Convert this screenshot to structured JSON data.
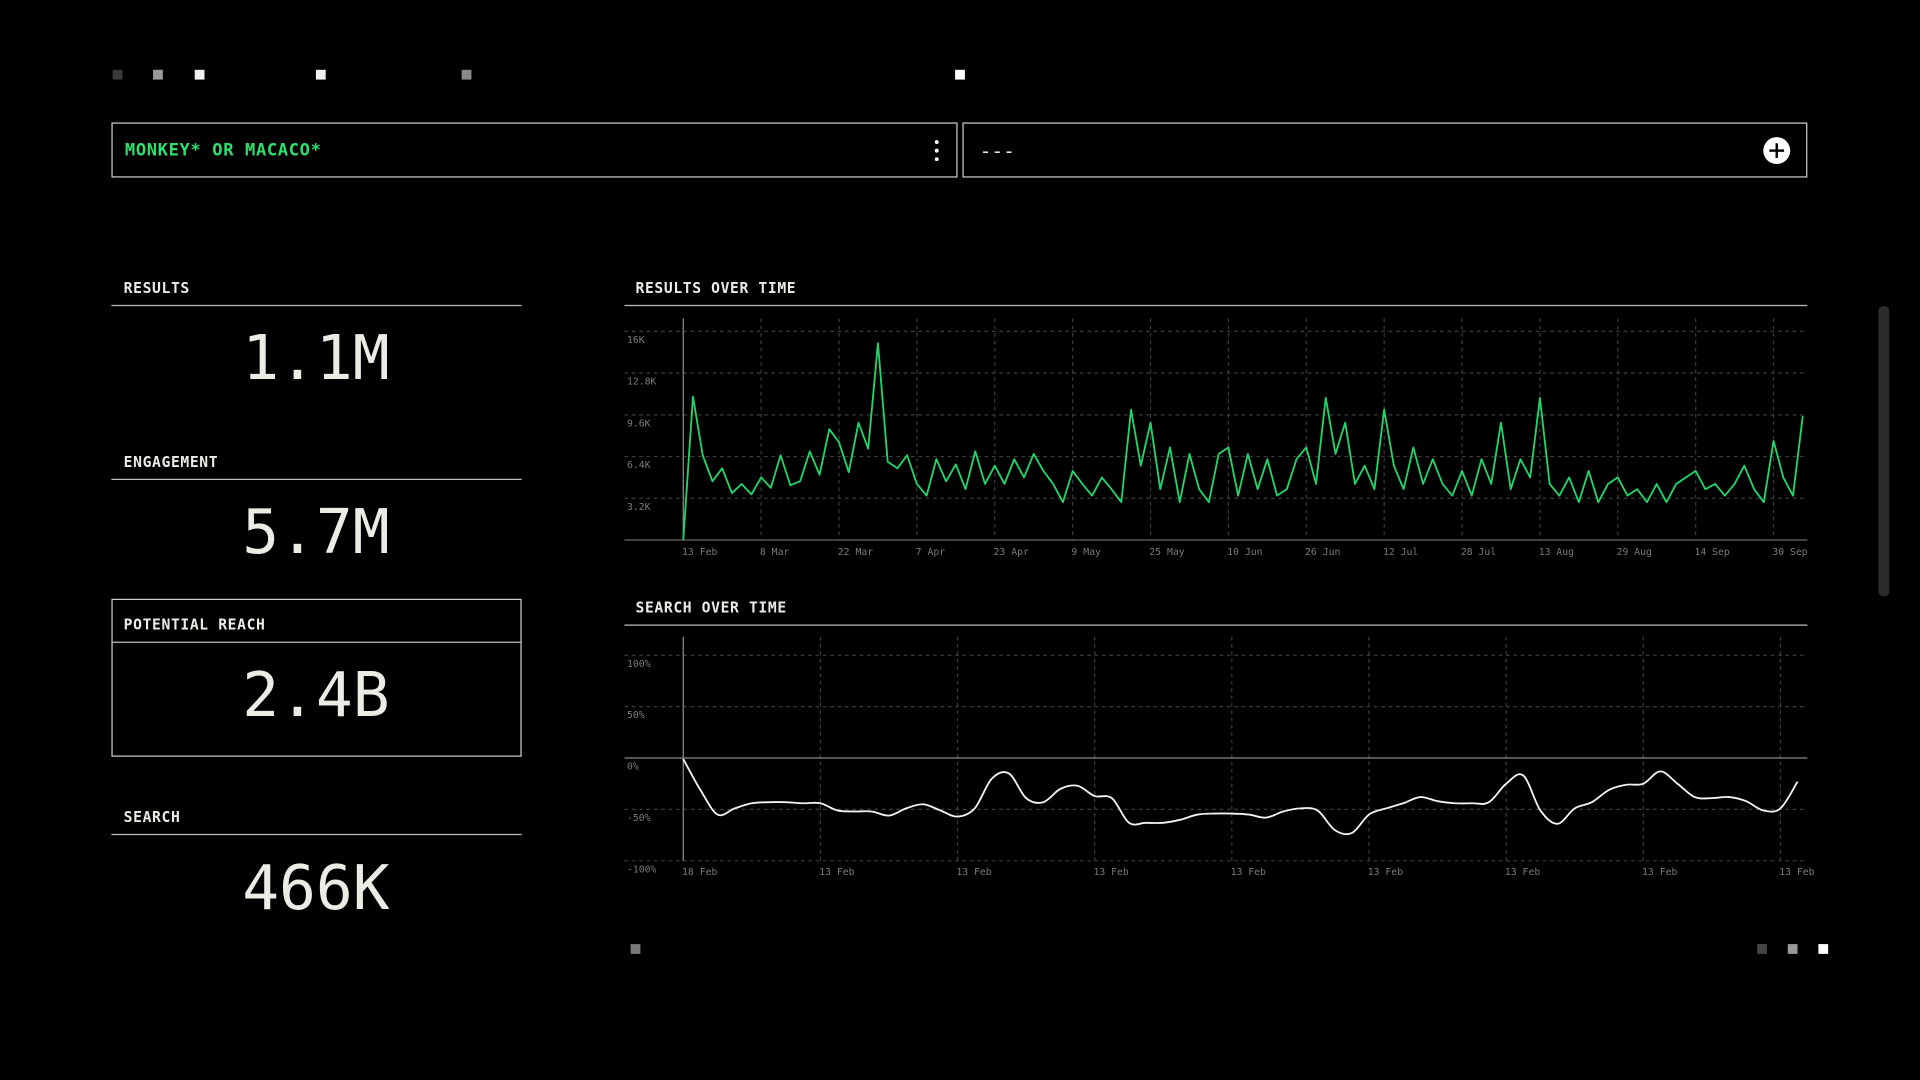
{
  "ui": {
    "query": "MONKEY* OR MACACO*",
    "compare": "---",
    "stats": [
      {
        "label": "RESULTS",
        "value": "1.1M"
      },
      {
        "label": "ENGAGEMENT",
        "value": "5.7M"
      },
      {
        "label": "POTENTIAL REACH",
        "value": "2.4B"
      },
      {
        "label": "SEARCH",
        "value": "466K"
      }
    ]
  },
  "chart_data": [
    {
      "type": "line",
      "title": "RESULTS OVER TIME",
      "color": "#22d46a",
      "smooth": false,
      "grid": true,
      "categories": [
        "13 Feb",
        null,
        null,
        null,
        null,
        null,
        null,
        null,
        "8 Mar",
        null,
        null,
        null,
        null,
        null,
        null,
        null,
        "22 Mar",
        null,
        null,
        null,
        null,
        null,
        null,
        null,
        "7 Apr",
        null,
        null,
        null,
        null,
        null,
        null,
        null,
        "23 Apr",
        null,
        null,
        null,
        null,
        null,
        null,
        null,
        "9 May",
        null,
        null,
        null,
        null,
        null,
        null,
        null,
        "25 May",
        null,
        null,
        null,
        null,
        null,
        null,
        null,
        "10 Jun",
        null,
        null,
        null,
        null,
        null,
        null,
        null,
        "26 Jun",
        null,
        null,
        null,
        null,
        null,
        null,
        null,
        "12 Jul",
        null,
        null,
        null,
        null,
        null,
        null,
        null,
        "28 Jul",
        null,
        null,
        null,
        null,
        null,
        null,
        null,
        "13 Aug",
        null,
        null,
        null,
        null,
        null,
        null,
        null,
        "29 Aug",
        null,
        null,
        null,
        null,
        null,
        null,
        null,
        "14 Sep",
        null,
        null,
        null,
        null,
        null,
        null,
        null,
        "30 Sep",
        null,
        null,
        null
      ],
      "values": [
        0,
        11000,
        6500,
        4500,
        5500,
        3600,
        4300,
        3500,
        4800,
        4000,
        6500,
        4200,
        4500,
        6800,
        5000,
        8500,
        7500,
        5200,
        9000,
        7000,
        15100,
        6000,
        5500,
        6500,
        4300,
        3400,
        6200,
        4500,
        5800,
        3900,
        6800,
        4300,
        5700,
        4300,
        6200,
        4800,
        6600,
        5300,
        4300,
        2900,
        5300,
        4300,
        3400,
        4800,
        3900,
        2900,
        10000,
        5700,
        9000,
        3900,
        7100,
        2900,
        6600,
        3900,
        2900,
        6600,
        7100,
        3400,
        6600,
        3900,
        6200,
        3400,
        3900,
        6200,
        7100,
        4300,
        10900,
        6600,
        9000,
        4300,
        5700,
        3900,
        10000,
        5700,
        3900,
        7100,
        4300,
        6200,
        4300,
        3400,
        5300,
        3400,
        6200,
        4300,
        9000,
        3900,
        6200,
        4800,
        10900,
        4300,
        3400,
        4800,
        2900,
        5300,
        2900,
        4300,
        4800,
        3400,
        3900,
        2900,
        4300,
        2900,
        4300,
        4800,
        5300,
        3900,
        4300,
        3400,
        4300,
        5700,
        3900,
        2900,
        7600,
        4800,
        3400,
        9500
      ],
      "ylim": [
        0,
        17000
      ],
      "yticks": [
        {
          "value": 16000,
          "label": "16K"
        },
        {
          "value": 12800,
          "label": "12.8K"
        },
        {
          "value": 9600,
          "label": "9.6K"
        },
        {
          "value": 6400,
          "label": "6.4K"
        },
        {
          "value": 3200,
          "label": "3.2K"
        }
      ]
    },
    {
      "type": "line",
      "title": "SEARCH OVER TIME",
      "color": "#f2f2ee",
      "smooth": true,
      "grid": true,
      "categories": [
        "18 Feb",
        null,
        null,
        null,
        null,
        null,
        null,
        null,
        "13 Feb",
        null,
        null,
        null,
        null,
        null,
        null,
        null,
        "13 Feb",
        null,
        null,
        null,
        null,
        null,
        null,
        null,
        "13 Feb",
        null,
        null,
        null,
        null,
        null,
        null,
        null,
        "13 Feb",
        null,
        null,
        null,
        null,
        null,
        null,
        null,
        "13 Feb",
        null,
        null,
        null,
        null,
        null,
        null,
        null,
        "13 Feb",
        null,
        null,
        null,
        null,
        null,
        null,
        null,
        "13 Feb",
        null,
        null,
        null,
        null,
        null,
        null,
        null,
        "13 Feb",
        null
      ],
      "values": [
        -1,
        -31,
        -55,
        -49,
        -44,
        -43,
        -43,
        -44,
        -44,
        -51,
        -52,
        -52,
        -56,
        -49,
        -45,
        -51,
        -57,
        -49,
        -20,
        -15,
        -39,
        -43,
        -30,
        -27,
        -37,
        -39,
        -63,
        -63,
        -63,
        -60,
        -55,
        -54,
        -54,
        -55,
        -58,
        -52,
        -49,
        -51,
        -70,
        -73,
        -55,
        -49,
        -44,
        -38,
        -42,
        -44,
        -44,
        -43,
        -25,
        -17,
        -51,
        -64,
        -49,
        -43,
        -31,
        -26,
        -25,
        -13,
        -25,
        -38,
        -39,
        -38,
        -42,
        -51,
        -49,
        -23
      ],
      "ylim": [
        -100,
        118
      ],
      "yticks": [
        {
          "value": 100,
          "label": "100%"
        },
        {
          "value": 50,
          "label": "50%"
        },
        {
          "value": 0,
          "label": "0%"
        },
        {
          "value": -50,
          "label": "-50%"
        },
        {
          "value": -100,
          "label": "-100%"
        }
      ]
    }
  ]
}
